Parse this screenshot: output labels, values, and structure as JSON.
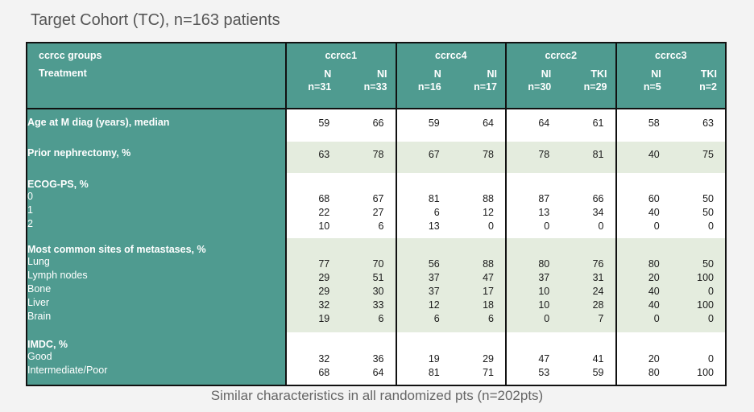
{
  "title": "Target Cohort (TC), n=163 patients",
  "footer": "Similar characteristics in all randomized pts (n=202pts)",
  "table": {
    "group_header_label": "ccrcc groups",
    "treatment_label": "Treatment",
    "groups": [
      "ccrcc1",
      "ccrcc4",
      "ccrcc2",
      "ccrcc3"
    ],
    "subcolumns": [
      {
        "arm": "N",
        "n": "n=31"
      },
      {
        "arm": "NI",
        "n": "n=33"
      },
      {
        "arm": "N",
        "n": "n=16"
      },
      {
        "arm": "NI",
        "n": "n=17"
      },
      {
        "arm": "NI",
        "n": "n=30"
      },
      {
        "arm": "TKI",
        "n": "n=29"
      },
      {
        "arm": "NI",
        "n": "n=5"
      },
      {
        "arm": "TKI",
        "n": "n=2"
      }
    ],
    "rows": {
      "age": {
        "label": "Age at M diag (years), median",
        "values": [
          "59",
          "66",
          "59",
          "64",
          "64",
          "61",
          "58",
          "63"
        ]
      },
      "nephrectomy": {
        "label": "Prior nephrectomy, %",
        "values": [
          "63",
          "78",
          "67",
          "78",
          "78",
          "81",
          "40",
          "75"
        ]
      },
      "ecog": {
        "label": "ECOG-PS, %",
        "items": "0\n1\n2",
        "values": [
          "68\n22\n10",
          "67\n27\n6",
          "81\n6\n13",
          "88\n12\n0",
          "87\n13\n0",
          "66\n34\n0",
          "60\n40\n0",
          "50\n50\n0"
        ]
      },
      "metastases": {
        "label": "Most common sites of metastases, %",
        "items": "Lung\nLymph nodes\nBone\nLiver\nBrain",
        "values": [
          "77\n29\n29\n32\n19",
          "70\n51\n30\n33\n6",
          "56\n37\n37\n12\n6",
          "88\n47\n17\n18\n6",
          "80\n37\n10\n10\n0",
          "76\n31\n24\n28\n7",
          "80\n20\n40\n40\n0",
          "50\n100\n0\n100\n0"
        ]
      },
      "imdc": {
        "label": "IMDC, %",
        "items": "Good\nIntermediate/Poor",
        "values": [
          "32\n68",
          "36\n64",
          "19\n81",
          "29\n71",
          "47\n53",
          "41\n59",
          "20\n80",
          "0\n100"
        ]
      }
    }
  },
  "colors": {
    "header_teal": "#4f9b90",
    "band_green": "#e4ecde",
    "band_white": "#ffffff",
    "border": "#111111"
  }
}
